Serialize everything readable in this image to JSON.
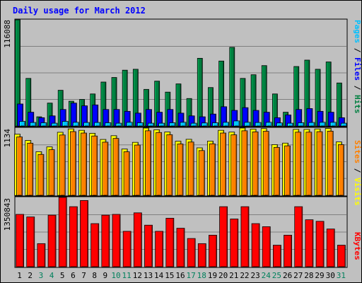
{
  "chart_data": [
    {
      "type": "bar",
      "panel": "hits-files-pages",
      "title": "Daily usage for March 2012",
      "categories": [
        "1",
        "2",
        "3",
        "4",
        "5",
        "6",
        "7",
        "8",
        "9",
        "10",
        "11",
        "12",
        "13",
        "14",
        "15",
        "16",
        "17",
        "18",
        "19",
        "20",
        "21",
        "22",
        "23",
        "24",
        "25",
        "26",
        "27",
        "28",
        "29",
        "30",
        "31"
      ],
      "weekend_days": [
        "3",
        "4",
        "10",
        "11",
        "17",
        "18",
        "24",
        "25",
        "31"
      ],
      "ylabel": "Pages / Files / Hits",
      "ylabel_parts": [
        "Pages",
        "/",
        "Files",
        "/",
        "Hits"
      ],
      "ytick_label": "116088",
      "ylim": [
        0,
        116088
      ],
      "grid": true,
      "series": [
        {
          "name": "Hits",
          "color": "#008040",
          "values": [
            116088,
            52000,
            10000,
            25000,
            39000,
            27000,
            29000,
            35000,
            48000,
            53000,
            61000,
            62000,
            40000,
            49000,
            37000,
            46000,
            30000,
            74000,
            42000,
            71000,
            86000,
            52000,
            56000,
            66000,
            35000,
            15000,
            65000,
            72000,
            62000,
            70000,
            47000
          ]
        },
        {
          "name": "Files",
          "color": "#0000ff",
          "values": [
            24000,
            15000,
            9000,
            11000,
            18000,
            25000,
            22000,
            23000,
            18000,
            18000,
            16000,
            14000,
            18000,
            15000,
            18000,
            14000,
            11000,
            10000,
            13000,
            21000,
            17000,
            20000,
            17000,
            15000,
            9000,
            12000,
            18000,
            19000,
            16000,
            15000,
            9000
          ]
        },
        {
          "name": "Pages",
          "color": "#00c0ff",
          "values": [
            5000,
            3800,
            3500,
            3000,
            5000,
            4000,
            3800,
            3800,
            3500,
            3000,
            4000,
            3500,
            3000,
            3000,
            3500,
            4000,
            3000,
            3300,
            3500,
            4000,
            5500,
            4000,
            3800,
            4000,
            3300,
            3000,
            3500,
            3800,
            4000,
            4000,
            3000
          ]
        }
      ]
    },
    {
      "type": "bar",
      "panel": "visits-sites",
      "categories": [
        "1",
        "2",
        "3",
        "4",
        "5",
        "6",
        "7",
        "8",
        "9",
        "10",
        "11",
        "12",
        "13",
        "14",
        "15",
        "16",
        "17",
        "18",
        "19",
        "20",
        "21",
        "22",
        "23",
        "24",
        "25",
        "26",
        "27",
        "28",
        "29",
        "30",
        "31"
      ],
      "ylabel": "Sites / Visits",
      "ylabel_parts": [
        "Sites",
        "/",
        "Visits"
      ],
      "ytick_label": "1134",
      "ylim": [
        0,
        1134
      ],
      "grid": true,
      "series": [
        {
          "name": "Visits",
          "color": "#ffff00",
          "values": [
            1030,
            925,
            735,
            816,
            1063,
            1120,
            1096,
            1046,
            942,
            1005,
            780,
            893,
            1134,
            1105,
            1068,
            912,
            944,
            800,
            914,
            1096,
            1066,
            1134,
            1116,
            1125,
            854,
            880,
            1111,
            1111,
            1119,
            1128,
            900
          ]
        },
        {
          "name": "Sites",
          "color": "#ff8000",
          "values": [
            984,
            879,
            689,
            770,
            1017,
            1074,
            1050,
            1000,
            896,
            959,
            734,
            847,
            1088,
            1059,
            1022,
            866,
            898,
            754,
            868,
            1050,
            1020,
            1088,
            1070,
            1079,
            808,
            834,
            1065,
            1065,
            1073,
            1082,
            854
          ]
        }
      ]
    },
    {
      "type": "bar",
      "panel": "kbytes",
      "categories": [
        "1",
        "2",
        "3",
        "4",
        "5",
        "6",
        "7",
        "8",
        "9",
        "10",
        "11",
        "12",
        "13",
        "14",
        "15",
        "16",
        "17",
        "18",
        "19",
        "20",
        "21",
        "22",
        "23",
        "24",
        "25",
        "26",
        "27",
        "28",
        "29",
        "30",
        "31"
      ],
      "ylabel": "KBytes",
      "ytick_label": "1350843",
      "ylim": [
        0,
        1350843
      ],
      "grid": true,
      "series": [
        {
          "name": "KBytes",
          "color": "#ff0000",
          "values": [
            1020000,
            970000,
            450000,
            1005000,
            1350843,
            1170000,
            1290000,
            840000,
            1005000,
            1020000,
            690000,
            1050000,
            810000,
            690000,
            945000,
            750000,
            550000,
            450000,
            615000,
            1170000,
            930000,
            1170000,
            840000,
            780000,
            420000,
            615000,
            1170000,
            915000,
            885000,
            735000,
            420000
          ]
        }
      ]
    }
  ]
}
